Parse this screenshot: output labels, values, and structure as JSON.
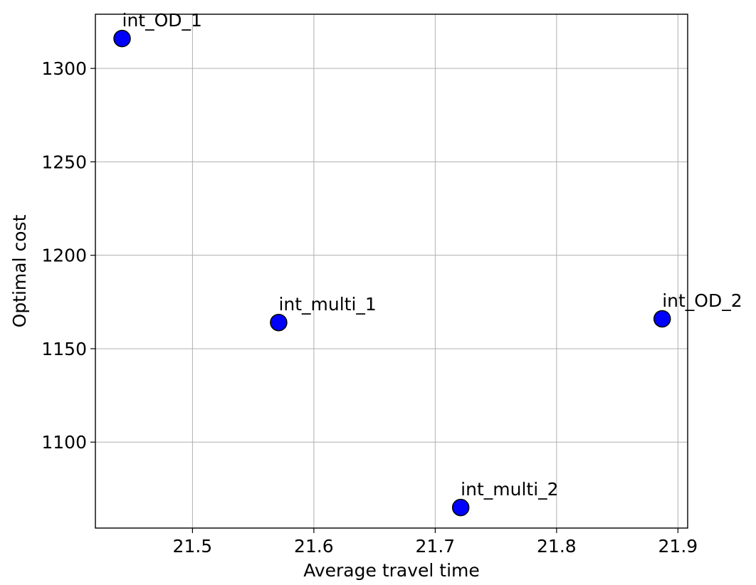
{
  "chart_data": {
    "type": "scatter",
    "title": "",
    "xlabel": "Average travel time",
    "ylabel": "Optimal cost",
    "xlim": [
      21.42,
      21.908
    ],
    "ylim": [
      1054,
      1329
    ],
    "xticks": [
      "21.5",
      "21.6",
      "21.7",
      "21.8",
      "21.9"
    ],
    "yticks": [
      "1100",
      "1150",
      "1200",
      "1250",
      "1300"
    ],
    "grid": true,
    "marker_color": "#0000ff",
    "points": [
      {
        "label": "int_OD_1",
        "x": 21.442,
        "y": 1316
      },
      {
        "label": "int_multi_1",
        "x": 21.571,
        "y": 1164
      },
      {
        "label": "int_multi_2",
        "x": 21.721,
        "y": 1065
      },
      {
        "label": "int_OD_2",
        "x": 21.887,
        "y": 1166
      }
    ]
  }
}
